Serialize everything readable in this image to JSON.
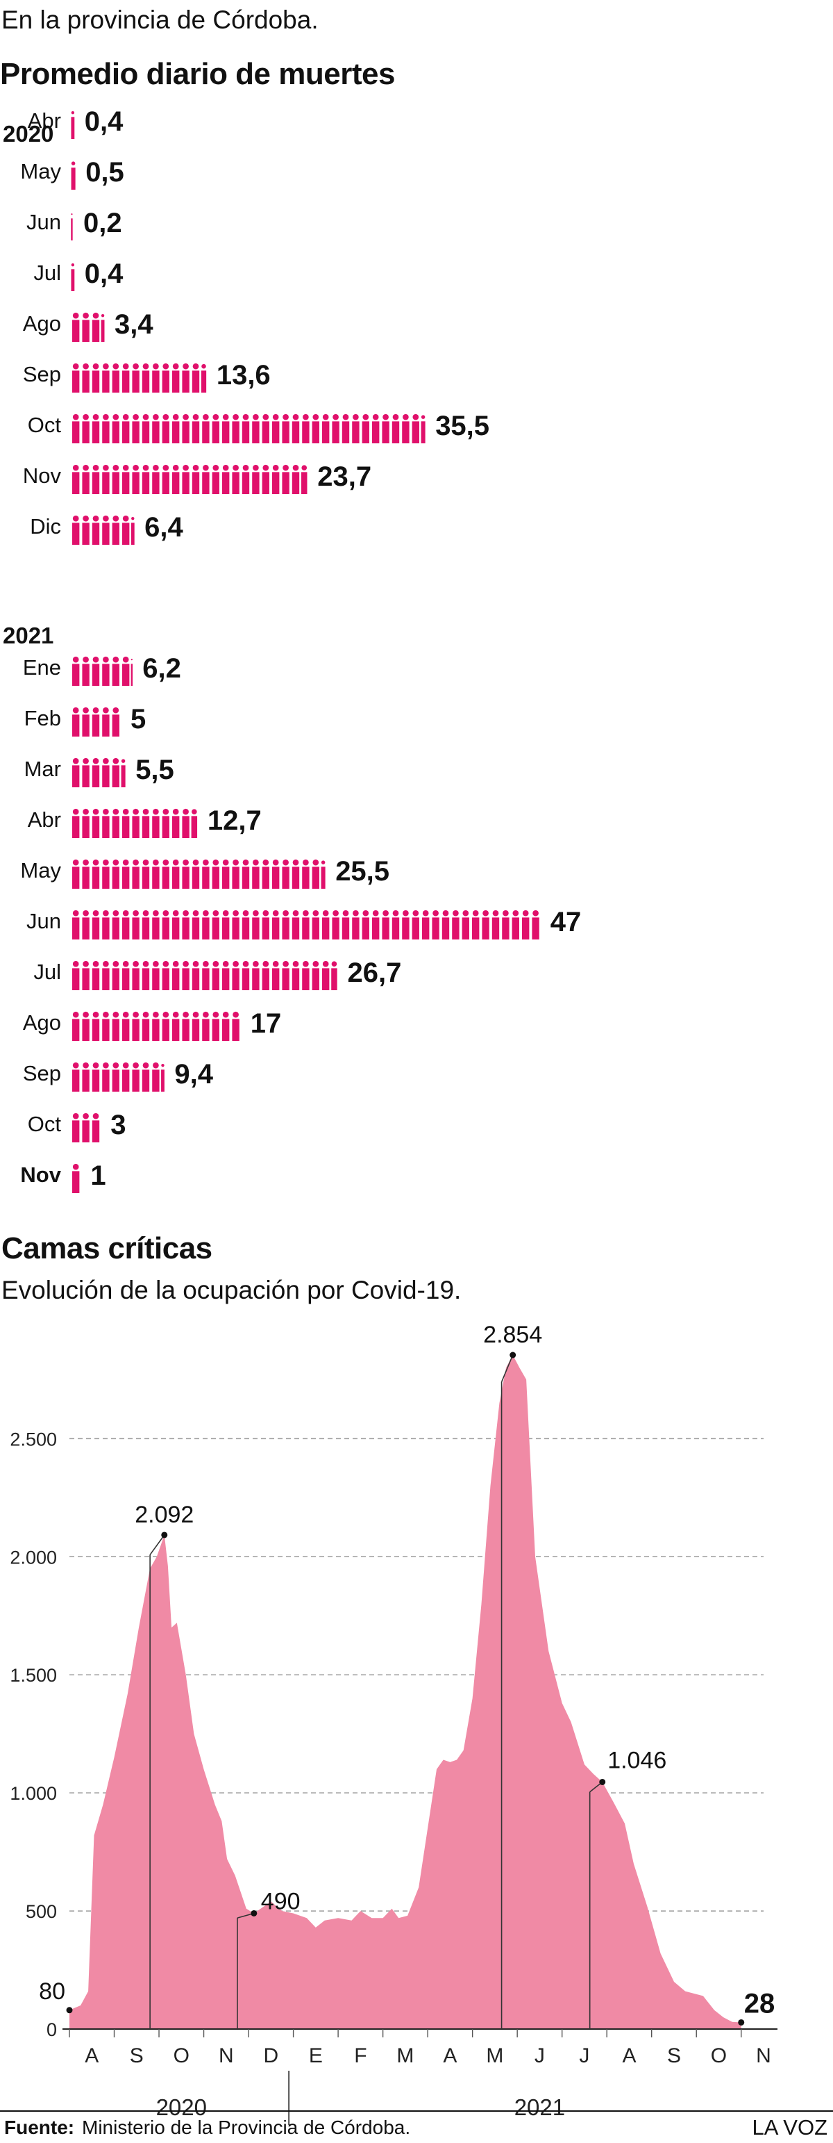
{
  "intro": "En la provincia de Córdoba.",
  "deaths": {
    "title": "Promedio diario de muertes",
    "groups": [
      {
        "year": "2020",
        "rows": [
          {
            "label": "Abr",
            "value": 0.4,
            "value_text": "0,4"
          },
          {
            "label": "May",
            "value": 0.5,
            "value_text": "0,5"
          },
          {
            "label": "Jun",
            "value": 0.2,
            "value_text": "0,2"
          },
          {
            "label": "Jul",
            "value": 0.4,
            "value_text": "0,4"
          },
          {
            "label": "Ago",
            "value": 3.4,
            "value_text": "3,4"
          },
          {
            "label": "Sep",
            "value": 13.6,
            "value_text": "13,6"
          },
          {
            "label": "Oct",
            "value": 35.5,
            "value_text": "35,5"
          },
          {
            "label": "Nov",
            "value": 23.7,
            "value_text": "23,7"
          },
          {
            "label": "Dic",
            "value": 6.4,
            "value_text": "6,4"
          }
        ]
      },
      {
        "year": "2021",
        "rows": [
          {
            "label": "Ene",
            "value": 6.2,
            "value_text": "6,2"
          },
          {
            "label": "Feb",
            "value": 5,
            "value_text": "5"
          },
          {
            "label": "Mar",
            "value": 5.5,
            "value_text": "5,5"
          },
          {
            "label": "Abr",
            "value": 12.7,
            "value_text": "12,7"
          },
          {
            "label": "May",
            "value": 25.5,
            "value_text": "25,5"
          },
          {
            "label": "Jun",
            "value": 47,
            "value_text": "47"
          },
          {
            "label": "Jul",
            "value": 26.7,
            "value_text": "26,7"
          },
          {
            "label": "Ago",
            "value": 17,
            "value_text": "17"
          },
          {
            "label": "Sep",
            "value": 9.4,
            "value_text": "9,4"
          },
          {
            "label": "Oct",
            "value": 3,
            "value_text": "3"
          },
          {
            "label": "Nov",
            "value": 1,
            "value_text": "1",
            "highlight": true
          }
        ]
      }
    ],
    "color": "#e0106b"
  },
  "beds": {
    "title": "Camas críticas",
    "subtitle": "Evolución de la ocupación por Covid-19."
  },
  "chart_data": [
    {
      "type": "bar",
      "title": "Promedio diario de muertes",
      "categories": [
        "Abr 2020",
        "May 2020",
        "Jun 2020",
        "Jul 2020",
        "Ago 2020",
        "Sep 2020",
        "Oct 2020",
        "Nov 2020",
        "Dic 2020",
        "Ene 2021",
        "Feb 2021",
        "Mar 2021",
        "Abr 2021",
        "May 2021",
        "Jun 2021",
        "Jul 2021",
        "Ago 2021",
        "Sep 2021",
        "Oct 2021",
        "Nov 2021"
      ],
      "values": [
        0.4,
        0.5,
        0.2,
        0.4,
        3.4,
        13.6,
        35.5,
        23.7,
        6.4,
        6.2,
        5,
        5.5,
        12.7,
        25.5,
        47,
        26.7,
        17,
        9.4,
        3,
        1
      ],
      "orientation": "horizontal",
      "color": "#e0106b"
    },
    {
      "type": "area",
      "title": "Camas críticas",
      "subtitle": "Evolución de la ocupación por Covid-19.",
      "color": "#f08aa5",
      "ylim": [
        0,
        2854
      ],
      "yticks": [
        0,
        500,
        1000,
        1500,
        2000,
        2500
      ],
      "ytick_labels": [
        "0",
        "500",
        "1.000",
        "1.500",
        "2.000",
        "2.500"
      ],
      "grid": "horizontal-dashed",
      "months": [
        "A",
        "S",
        "O",
        "N",
        "D",
        "E",
        "F",
        "M",
        "A",
        "M",
        "J",
        "J",
        "A",
        "S",
        "O",
        "N"
      ],
      "years": [
        {
          "label": "2020",
          "start_month": 0,
          "end_month": 5
        },
        {
          "label": "2021",
          "start_month": 5,
          "end_month": 16
        }
      ],
      "x_start_date": "2020-08-01",
      "points": [
        [
          0.0,
          80
        ],
        [
          0.25,
          100
        ],
        [
          0.42,
          160
        ],
        [
          0.55,
          820
        ],
        [
          0.75,
          950
        ],
        [
          1.0,
          1150
        ],
        [
          1.3,
          1420
        ],
        [
          1.55,
          1700
        ],
        [
          1.8,
          1950
        ],
        [
          1.95,
          2000
        ],
        [
          2.12,
          2092
        ],
        [
          2.2,
          1960
        ],
        [
          2.28,
          1700
        ],
        [
          2.4,
          1720
        ],
        [
          2.6,
          1500
        ],
        [
          2.78,
          1250
        ],
        [
          3.0,
          1100
        ],
        [
          3.25,
          950
        ],
        [
          3.4,
          880
        ],
        [
          3.52,
          720
        ],
        [
          3.7,
          650
        ],
        [
          3.95,
          510
        ],
        [
          4.12,
          490
        ],
        [
          4.35,
          520
        ],
        [
          4.5,
          540
        ],
        [
          4.75,
          500
        ],
        [
          5.0,
          490
        ],
        [
          5.3,
          470
        ],
        [
          5.5,
          430
        ],
        [
          5.7,
          460
        ],
        [
          6.0,
          470
        ],
        [
          6.3,
          460
        ],
        [
          6.5,
          500
        ],
        [
          6.75,
          470
        ],
        [
          7.0,
          470
        ],
        [
          7.2,
          510
        ],
        [
          7.35,
          470
        ],
        [
          7.55,
          480
        ],
        [
          7.8,
          600
        ],
        [
          8.0,
          850
        ],
        [
          8.2,
          1100
        ],
        [
          8.35,
          1140
        ],
        [
          8.5,
          1130
        ],
        [
          8.65,
          1140
        ],
        [
          8.8,
          1180
        ],
        [
          9.0,
          1400
        ],
        [
          9.2,
          1800
        ],
        [
          9.4,
          2300
        ],
        [
          9.6,
          2650
        ],
        [
          9.75,
          2800
        ],
        [
          9.9,
          2854
        ],
        [
          10.05,
          2800
        ],
        [
          10.2,
          2750
        ],
        [
          10.4,
          2000
        ],
        [
          10.7,
          1600
        ],
        [
          11.0,
          1380
        ],
        [
          11.2,
          1300
        ],
        [
          11.5,
          1120
        ],
        [
          11.7,
          1080
        ],
        [
          11.9,
          1046
        ],
        [
          12.15,
          960
        ],
        [
          12.4,
          870
        ],
        [
          12.6,
          700
        ],
        [
          12.9,
          520
        ],
        [
          13.2,
          320
        ],
        [
          13.5,
          200
        ],
        [
          13.75,
          160
        ],
        [
          13.95,
          150
        ],
        [
          14.15,
          140
        ],
        [
          14.4,
          80
        ],
        [
          14.6,
          50
        ],
        [
          14.8,
          30
        ],
        [
          15.0,
          28
        ]
      ],
      "annotations": [
        {
          "label": "80",
          "x": 0.0,
          "y": 80,
          "drop_line": false,
          "label_side": "left"
        },
        {
          "label": "2.092",
          "x": 2.12,
          "y": 2092,
          "drop_line": true,
          "drop_x": 1.8,
          "label_side": "above"
        },
        {
          "label": "490",
          "x": 4.12,
          "y": 490,
          "drop_line": true,
          "drop_x": 3.75,
          "label_side": "right"
        },
        {
          "label": "2.854",
          "x": 9.9,
          "y": 2854,
          "drop_line": true,
          "drop_x": 9.65,
          "label_side": "above"
        },
        {
          "label": "1.046",
          "x": 11.9,
          "y": 1046,
          "drop_line": true,
          "drop_x": 11.62,
          "label_side": "above-right"
        },
        {
          "label": "28",
          "x": 15.0,
          "y": 28,
          "drop_line": false,
          "label_side": "right-bold"
        }
      ]
    }
  ],
  "footer": {
    "source_label": "Fuente:",
    "source_text": "Ministerio de la Provincia de Córdoba.",
    "brand": "LA VOZ"
  }
}
